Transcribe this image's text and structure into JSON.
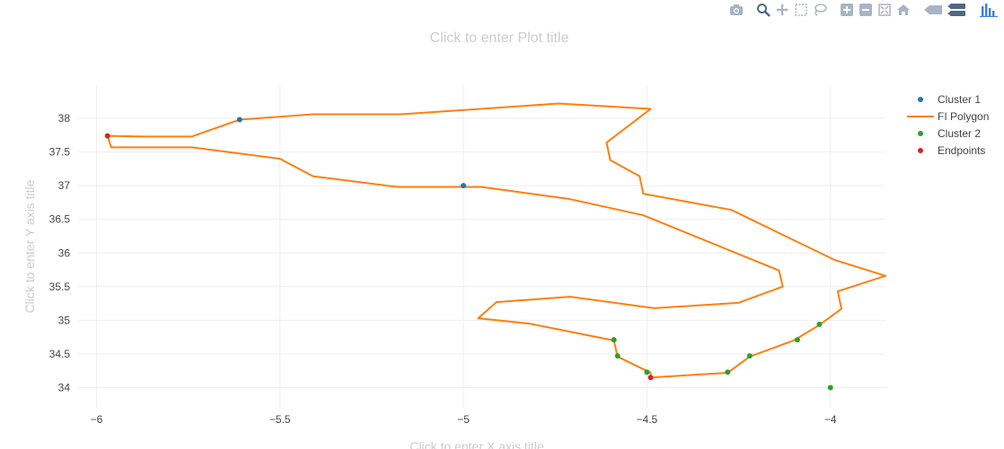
{
  "modebar": {
    "buttons": [
      {
        "name": "camera-icon"
      },
      {
        "name": "zoom-icon"
      },
      {
        "name": "pan-icon"
      },
      {
        "name": "box-select-icon"
      },
      {
        "name": "lasso-select-icon"
      },
      {
        "name": "zoom-in-icon"
      },
      {
        "name": "zoom-out-icon"
      },
      {
        "name": "autoscale-icon"
      },
      {
        "name": "home-icon"
      },
      {
        "name": "hover-closest-icon"
      },
      {
        "name": "hover-compare-icon"
      },
      {
        "name": "plotly-logo-icon"
      }
    ]
  },
  "chart_data": {
    "type": "scatter",
    "title": "Click to enter Plot title",
    "xlabel": "Click to enter X axis title",
    "ylabel": "Click to enter Y axis title",
    "xlim": [
      -6.05,
      -3.85
    ],
    "ylim": [
      33.7,
      38.48
    ],
    "xticks": [
      -6,
      -5.5,
      -5,
      -4.5,
      -4
    ],
    "xtick_labels": [
      "−6",
      "−5.5",
      "−5",
      "−4.5",
      "−4"
    ],
    "yticks": [
      34,
      34.5,
      35,
      35.5,
      36,
      36.5,
      37,
      37.5,
      38
    ],
    "ytick_labels": [
      "34",
      "34.5",
      "35",
      "35.5",
      "36",
      "36.5",
      "37",
      "37.5",
      "38"
    ],
    "grid": true,
    "legend_position": "top-right",
    "series": [
      {
        "name": "Cluster 1",
        "mode": "markers",
        "color": "#1f77b4",
        "x": [
          -5.61,
          -5.0
        ],
        "y": [
          37.98,
          37.0
        ]
      },
      {
        "name": "FI Polygon",
        "mode": "lines",
        "color": "#ff7f0e",
        "x": [
          -5.97,
          -5.87,
          -5.74,
          -5.61,
          -5.41,
          -5.17,
          -4.74,
          -4.49,
          -4.61,
          -4.6,
          -4.52,
          -4.51,
          -4.27,
          -3.99,
          -3.85,
          -3.98,
          -3.97,
          -4.03,
          -4.1,
          -4.22,
          -4.28,
          -4.49,
          -4.49,
          -4.58,
          -4.59,
          -4.82,
          -4.96,
          -4.91,
          -4.71,
          -4.48,
          -4.25,
          -4.13,
          -4.14,
          -4.51,
          -4.71,
          -4.95,
          -5.18,
          -5.41,
          -5.5,
          -5.74,
          -5.96,
          -5.97
        ],
        "y": [
          37.74,
          37.73,
          37.73,
          37.98,
          38.06,
          38.06,
          38.22,
          38.14,
          37.64,
          37.38,
          37.14,
          36.88,
          36.64,
          35.9,
          35.66,
          35.43,
          35.17,
          34.93,
          34.7,
          34.46,
          34.22,
          34.15,
          34.22,
          34.46,
          34.7,
          34.95,
          35.03,
          35.27,
          35.35,
          35.18,
          35.26,
          35.5,
          35.74,
          36.56,
          36.8,
          36.98,
          36.98,
          37.14,
          37.4,
          37.57,
          37.57,
          37.74
        ]
      },
      {
        "name": "Cluster 2",
        "mode": "markers",
        "color": "#2ca02c",
        "x": [
          -4.59,
          -4.58,
          -4.5,
          -4.28,
          -4.22,
          -4.09,
          -4.03,
          -4.0
        ],
        "y": [
          34.71,
          34.47,
          34.23,
          34.23,
          34.47,
          34.71,
          34.94,
          34.0
        ]
      },
      {
        "name": "Endpoints",
        "mode": "markers",
        "color": "#d62728",
        "x": [
          -5.97,
          -4.49
        ],
        "y": [
          37.74,
          34.15
        ]
      }
    ]
  }
}
